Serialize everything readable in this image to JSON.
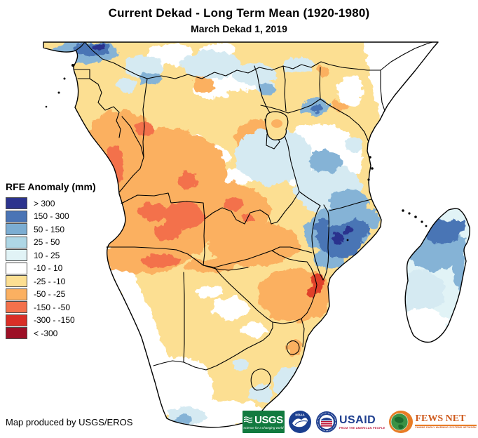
{
  "title": {
    "main": "Current Dekad - Long Term Mean (1920-1980)",
    "sub": "March Dekad 1, 2019"
  },
  "legend": {
    "title": "RFE Anomaly (mm)",
    "items": [
      {
        "label": "> 300",
        "color": "#2c338e"
      },
      {
        "label": "150 - 300",
        "color": "#4a74b5"
      },
      {
        "label": "50 - 150",
        "color": "#7cadd2"
      },
      {
        "label": "25 - 50",
        "color": "#aed7e6"
      },
      {
        "label": "10 - 25",
        "color": "#e1f3f6"
      },
      {
        "label": "-10 - 10",
        "color": "#ffffff"
      },
      {
        "label": "-25 - -10",
        "color": "#fcdf92"
      },
      {
        "label": "-50 - -25",
        "color": "#fbb061"
      },
      {
        "label": "-150 - -50",
        "color": "#f3714c"
      },
      {
        "label": "-300 - -150",
        "color": "#d92e26"
      },
      {
        "label": "< -300",
        "color": "#9d1026"
      }
    ]
  },
  "map": {
    "region": "Southern Africa and Madagascar",
    "colors": {
      "ocean": "#ffffff",
      "border": "#000000",
      "tan_base": "#fcdf92",
      "orange": "#fbb061",
      "dark_orange": "#f3714c",
      "red_spot": "#e0402c",
      "pale_blue": "#e1f3f6",
      "light_blue": "#d5eaf2",
      "mid_blue": "#85b3d6",
      "blue": "#4a74b5",
      "navy": "#2c338e"
    }
  },
  "footer": {
    "credit": "Map produced by USGS/EROS"
  },
  "logos": {
    "usgs": {
      "name": "USGS",
      "tagline": "science for a changing world",
      "color": "#127a3f"
    },
    "noaa": {
      "name": "NOAA",
      "color": "#1a3e8f"
    },
    "usaid": {
      "name": "USAID",
      "tagline": "FROM THE AMERICAN PEOPLE",
      "color": "#1f3f8f",
      "accent": "#ba0c2f"
    },
    "fewsnet": {
      "name": "FEWS NET",
      "tagline": "FAMINE EARLY WARNING SYSTEMS NETWORK",
      "color": "#cf5b1e",
      "accent": "#e87c25"
    }
  }
}
